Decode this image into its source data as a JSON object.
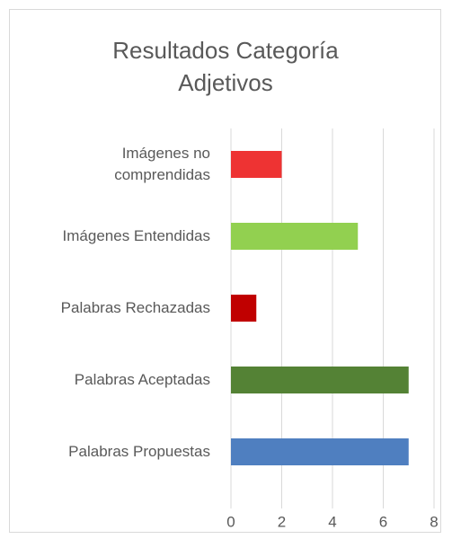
{
  "chart_data": {
    "type": "barh",
    "title": "Resultados Categoría Adjetivos",
    "categories": [
      "Imágenes no comprendidas",
      "Imágenes Entendidas",
      "Palabras Rechazadas",
      "Palabras Aceptadas",
      "Palabras Propuestas"
    ],
    "values": [
      2,
      5,
      1,
      7,
      7
    ],
    "colors": [
      "#ee3333",
      "#92d050",
      "#c00000",
      "#548235",
      "#4f7fc0"
    ],
    "xlim": [
      0,
      8
    ],
    "xticks": [
      0,
      2,
      4,
      6,
      8
    ],
    "grid": true
  }
}
